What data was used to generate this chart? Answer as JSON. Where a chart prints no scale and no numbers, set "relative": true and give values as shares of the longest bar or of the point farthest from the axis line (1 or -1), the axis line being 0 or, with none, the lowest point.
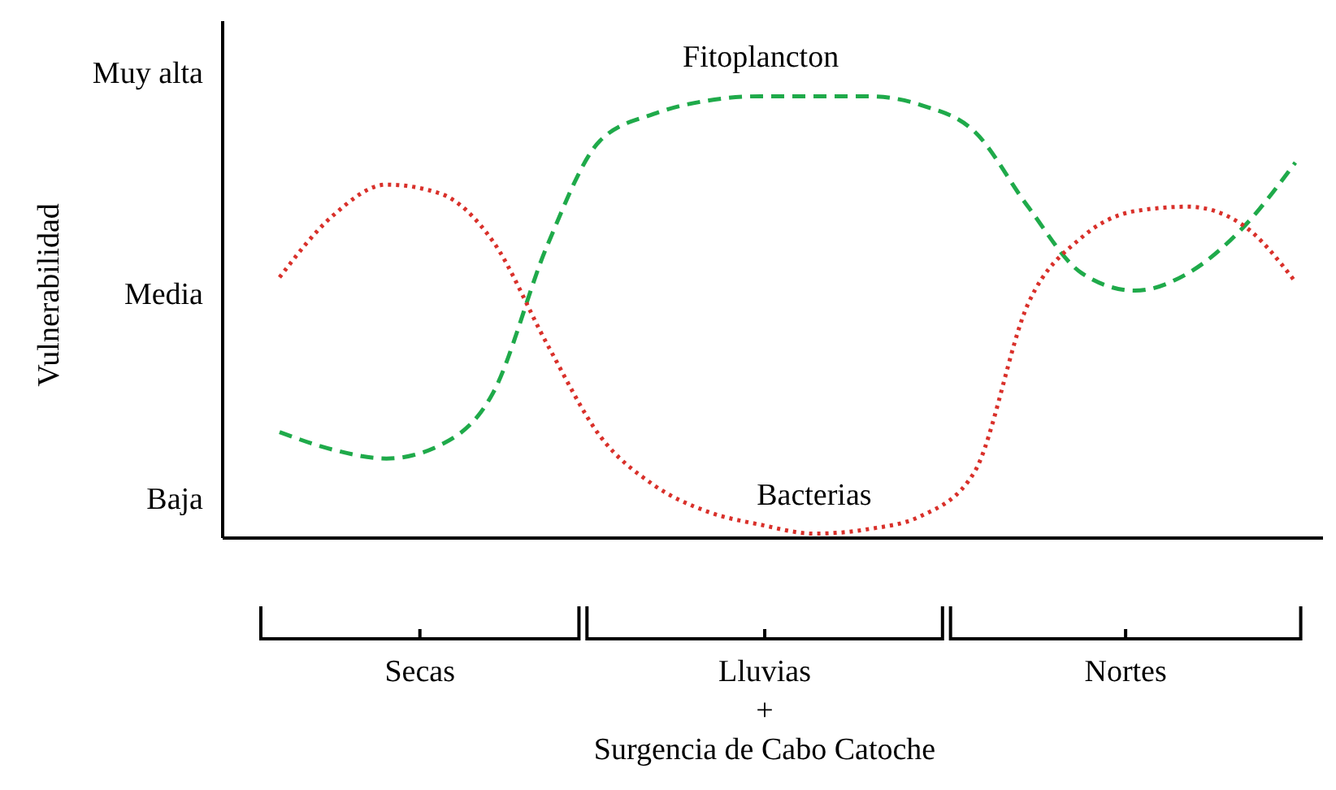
{
  "chart_data": {
    "type": "line",
    "relative": true,
    "categories": [
      null,
      null,
      null,
      null,
      null,
      null,
      null,
      null,
      null,
      null,
      null,
      null,
      null,
      null,
      null,
      null,
      null,
      null,
      null,
      null
    ],
    "series": [
      {
        "name": "Fitoplancton",
        "color": "#1faa4a",
        "line_style": "dashed",
        "values": [
          0.24,
          0.2,
          0.18,
          0.21,
          0.33,
          0.66,
          0.9,
          0.96,
          0.99,
          1.0,
          1.0,
          1.0,
          0.98,
          0.92,
          0.75,
          0.6,
          0.56,
          0.6,
          0.7,
          0.85
        ]
      },
      {
        "name": "Bacterias",
        "color": "#d9302a",
        "line_style": "dotted",
        "values": [
          0.59,
          0.73,
          0.8,
          0.78,
          0.67,
          0.44,
          0.23,
          0.12,
          0.06,
          0.03,
          0.01,
          0.02,
          0.05,
          0.15,
          0.53,
          0.68,
          0.74,
          0.75,
          0.71,
          0.58
        ]
      }
    ],
    "grid": false,
    "legend": false,
    "marker": "none",
    "annotations": [
      "Vulnerabilidad",
      "Baja",
      "Media",
      "Muy alta",
      "Secas",
      "Lluvias\n+\nSurgencia de Cabo Catoche",
      "Nortes"
    ]
  }
}
